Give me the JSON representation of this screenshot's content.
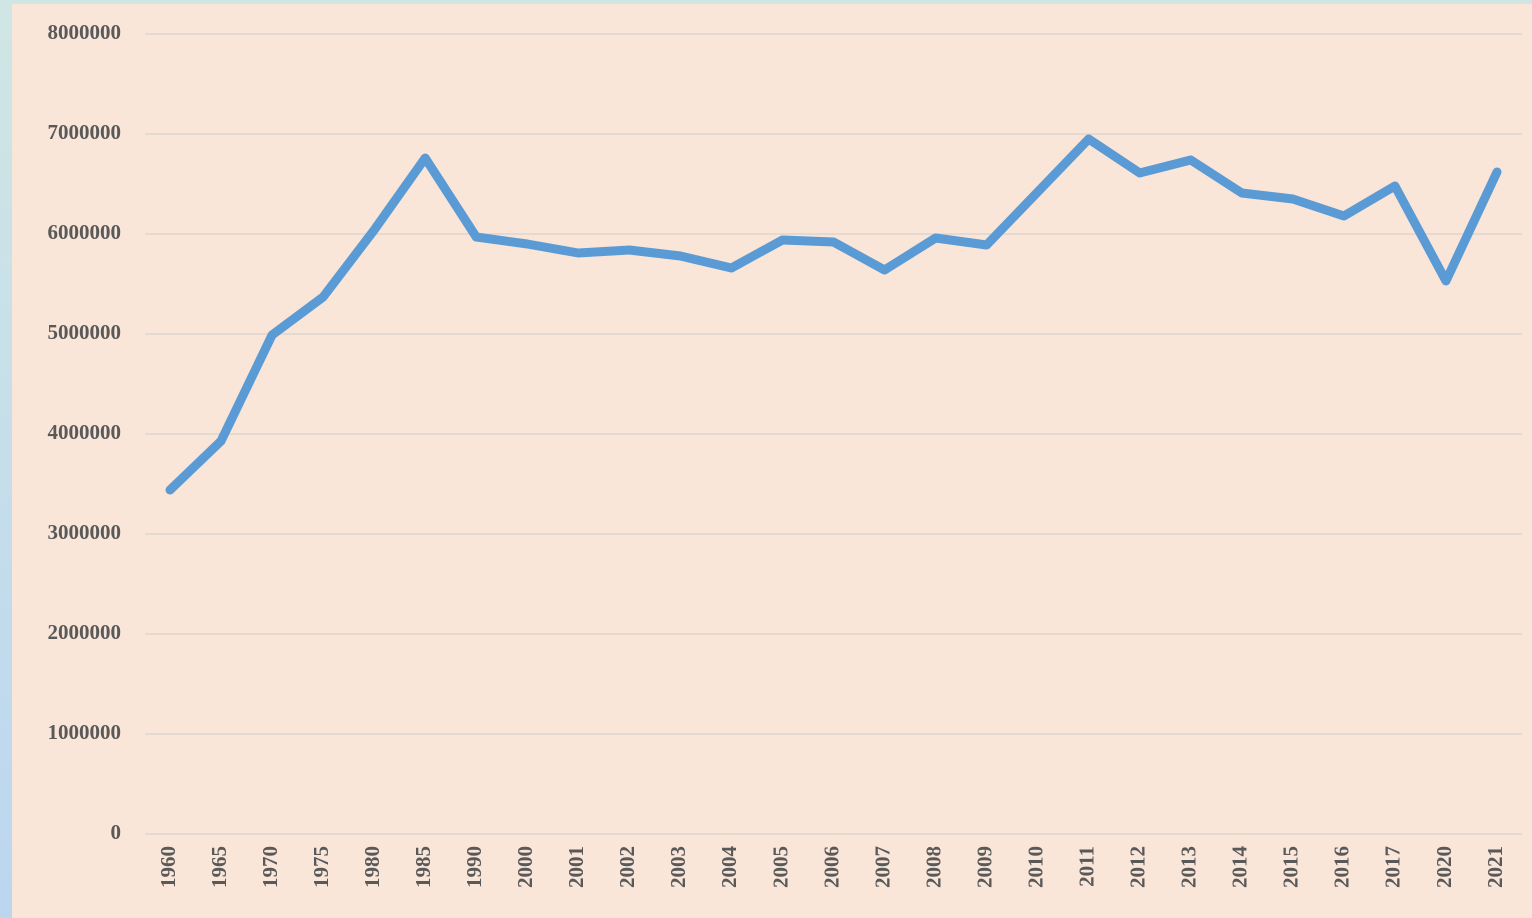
{
  "chart_data": {
    "type": "line",
    "categories": [
      "1960",
      "1965",
      "1970",
      "1975",
      "1980",
      "1985",
      "1990",
      "2000",
      "2001",
      "2002",
      "2003",
      "2004",
      "2005",
      "2006",
      "2007",
      "2008",
      "2009",
      "2010",
      "2011",
      "2012",
      "2013",
      "2014",
      "2015",
      "2016",
      "2017",
      "2020",
      "2021"
    ],
    "values": [
      3440000,
      3930000,
      4990000,
      5370000,
      6040000,
      6760000,
      5970000,
      5900000,
      5810000,
      5840000,
      5780000,
      5660000,
      5940000,
      5920000,
      5640000,
      5960000,
      5890000,
      6420000,
      6950000,
      6610000,
      6740000,
      6410000,
      6350000,
      6180000,
      6480000,
      5530000,
      6620000
    ],
    "color": "#5b9bd5",
    "ylim": [
      0,
      8000000
    ],
    "yticks": [
      0,
      1000000,
      2000000,
      3000000,
      4000000,
      5000000,
      6000000,
      7000000,
      8000000
    ],
    "grid": true
  }
}
